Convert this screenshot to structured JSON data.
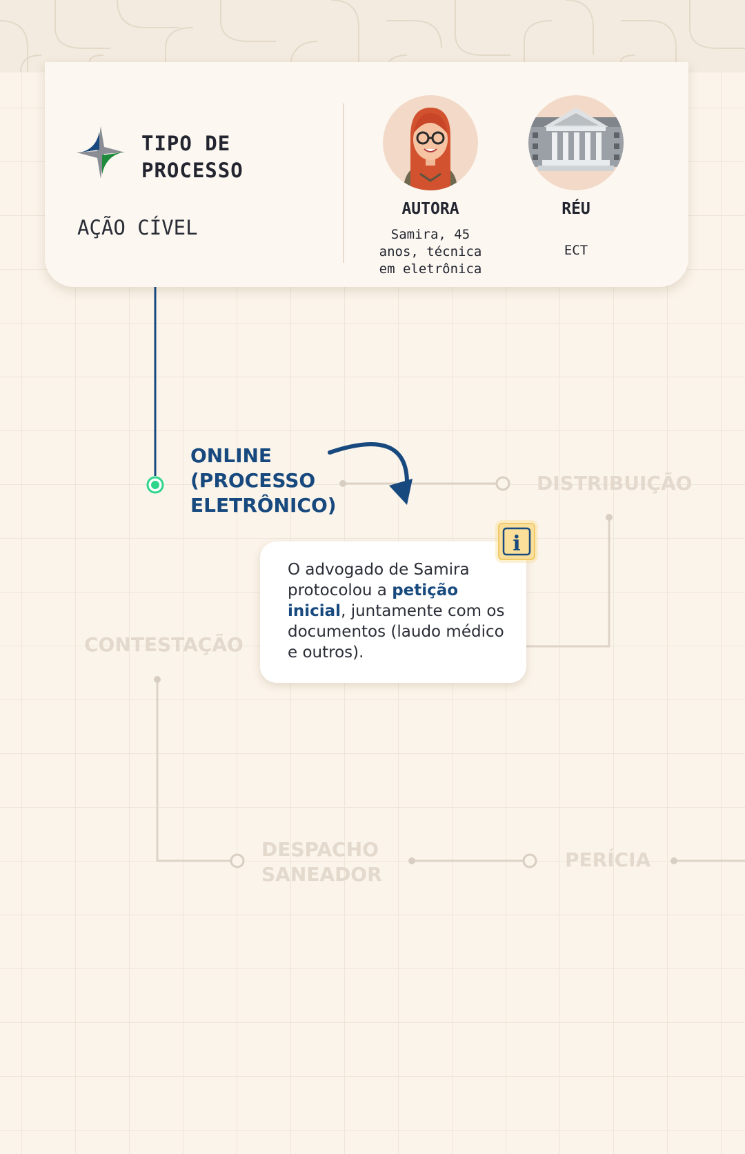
{
  "card": {
    "title": "TIPO DE PROCESSO",
    "value": "AÇÃO CÍVEL",
    "author": {
      "role": "AUTORA",
      "description": "Samira, 45 anos, técnica em eletrônica"
    },
    "defendant": {
      "role": "RÉU",
      "description": "ECT"
    }
  },
  "flow": {
    "active_step": "ONLINE (PROCESSO ELETRÔNICO)",
    "steps": {
      "distribuicao": "DISTRIBUIÇÃO",
      "contestacao": "CONTESTAÇÃO",
      "despacho": "DESPACHO SANEADOR",
      "pericia": "PERÍCIA"
    }
  },
  "info": {
    "text_before": "O advogado de Samira protocolou a ",
    "highlight": "petição inicial",
    "text_after": ", juntamente com os documentos (laudo médico e outros).",
    "badge": "i"
  },
  "colors": {
    "primary_blue": "#17497e",
    "active_green": "#2fd58a",
    "muted_text": "#e3d9cd",
    "badge_yellow": "#f9df99"
  },
  "icons": [
    "logo-icon",
    "author-avatar-icon",
    "courthouse-icon",
    "curved-arrow-icon",
    "info-icon"
  ]
}
